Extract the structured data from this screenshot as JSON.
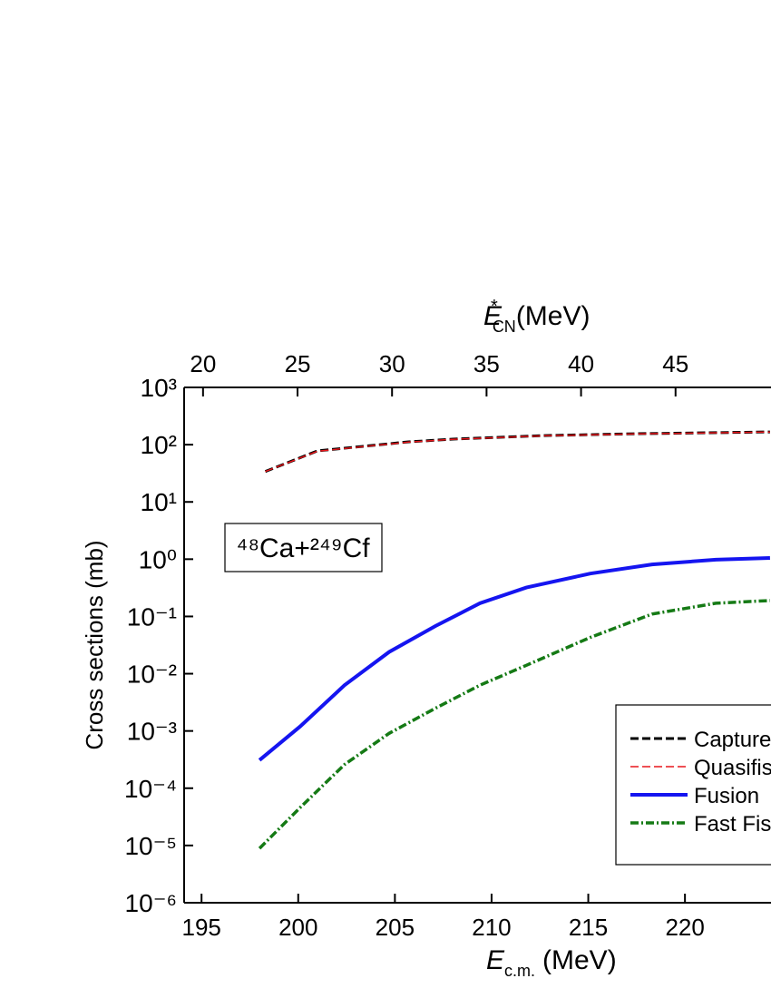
{
  "chart_data": {
    "type": "line",
    "xlabel_symbol": "E",
    "xlabel_sub": "c.m.",
    "xlabel_unit": "(MeV)",
    "x2label_symbol": "E",
    "x2label_sup": "*",
    "x2label_sub": "CN",
    "x2label_unit": "(MeV)",
    "ylabel": "Cross sections (mb)",
    "annotation": "⁴⁸Ca+²⁴⁹Cf",
    "xlim": [
      194.1,
      224.45
    ],
    "xticks": [
      195,
      200,
      205,
      210,
      215,
      220
    ],
    "x2lim": [
      19.0,
      50.05
    ],
    "x2ticks": [
      20,
      25,
      30,
      35,
      40,
      45
    ],
    "ylim": [
      1e-06,
      1000
    ],
    "log_y": true,
    "yticks": [
      {
        "value": 1000,
        "label": "10³"
      },
      {
        "value": 100,
        "label": "10²"
      },
      {
        "value": 10,
        "label": "10¹"
      },
      {
        "value": 1,
        "label": "10⁰"
      },
      {
        "value": 0.1,
        "label": "10⁻¹"
      },
      {
        "value": 0.01,
        "label": "10⁻²"
      },
      {
        "value": 0.001,
        "label": "10⁻³"
      },
      {
        "value": 0.0001,
        "label": "10⁻⁴"
      },
      {
        "value": 1e-05,
        "label": "10⁻⁵"
      },
      {
        "value": 1e-06,
        "label": "10⁻⁶"
      }
    ],
    "legend": "lower right",
    "series": [
      {
        "name": "Capture",
        "color": "#000000",
        "linestyle": "dashed",
        "linewidth": 3,
        "x": [
          198.3,
          201.0,
          203.3,
          205.7,
          208.0,
          212.7,
          217.4,
          224.4
        ],
        "values": [
          34,
          78,
          93,
          112,
          125,
          144,
          155,
          167
        ]
      },
      {
        "name": "Quasifission",
        "color": "#e8161b",
        "linestyle": "dashed",
        "linewidth": 1.5,
        "x": [
          198.3,
          201.0,
          203.3,
          205.7,
          208.0,
          212.7,
          217.4,
          224.4
        ],
        "values": [
          34,
          77,
          92,
          111,
          124,
          143,
          154,
          166
        ]
      },
      {
        "name": "Fusion",
        "color": "#1515f0",
        "linestyle": "solid",
        "linewidth": 4,
        "x": [
          198.0,
          200.1,
          202.4,
          204.7,
          207.1,
          209.4,
          211.8,
          215.1,
          218.3,
          221.6,
          224.4
        ],
        "values": [
          0.00031,
          0.0012,
          0.0063,
          0.024,
          0.068,
          0.17,
          0.32,
          0.56,
          0.81,
          0.98,
          1.05
        ]
      },
      {
        "name": "Fast Fission",
        "color": "#157a15",
        "linestyle": "dashdot",
        "linewidth": 3.5,
        "x": [
          198.0,
          200.1,
          202.4,
          204.7,
          207.1,
          209.4,
          211.8,
          215.1,
          218.3,
          221.6,
          224.4
        ],
        "values": [
          8.9e-06,
          4.6e-05,
          0.00026,
          0.00091,
          0.0025,
          0.0063,
          0.014,
          0.043,
          0.11,
          0.17,
          0.19
        ]
      }
    ]
  }
}
